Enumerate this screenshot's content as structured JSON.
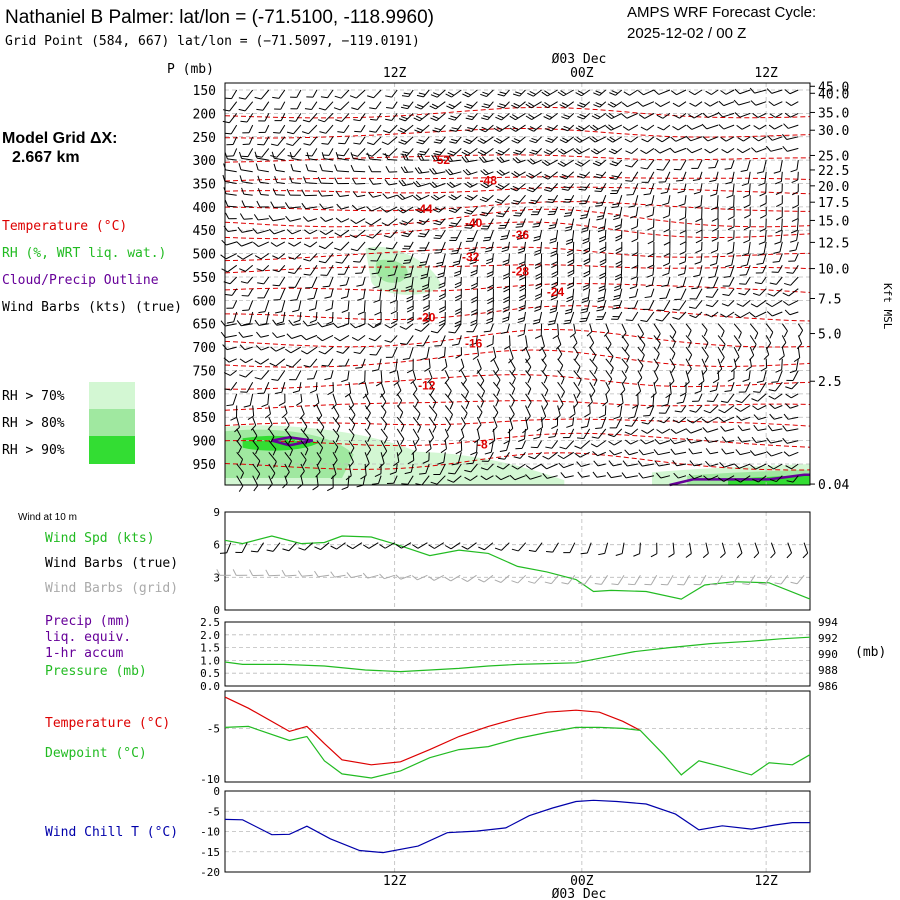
{
  "header": {
    "title": "Nathaniel B Palmer:  lat/lon = (-71.5100, -118.9960)",
    "subtitle": "Grid Point (584, 667) lat/lon = (−71.5097, −119.0191)",
    "cycle_line1": "AMPS WRF Forecast Cycle:",
    "cycle_line2": "2025-12-02 / 00  Z"
  },
  "time_axis": {
    "labels": [
      "12Z",
      "00Z",
      "12Z"
    ],
    "date_label": "Ø03 Dec",
    "date_label_bottom": "Ø03 Dec",
    "label_times": [
      0.29,
      0.61,
      0.925
    ]
  },
  "sidebar": {
    "model_grid_label": "Model Grid ΔX:",
    "model_grid_value": "2.667 km",
    "legend_temperature": "Temperature (°C)",
    "legend_rh": "RH (%, WRT liq. wat.)",
    "legend_cloud": "Cloud/Precip Outline",
    "legend_wind": "Wind Barbs (kts) (true)",
    "rh_levels": [
      {
        "label": "RH > 70%",
        "color": "#d3f7d3"
      },
      {
        "label": "RH > 80%",
        "color": "#a0e8a0"
      },
      {
        "label": "RH > 90%",
        "color": "#33dd33"
      }
    ]
  },
  "colors": {
    "temperature": "#dd0000",
    "rh": "#22bb22",
    "cloud": "#660099",
    "wind": "#000000",
    "wind_grid": "#aaaaaa",
    "windchill": "#0000aa"
  },
  "chart_data": [
    {
      "type": "heatmap",
      "name": "vertical-cross-section",
      "ylabel": "P (mb)",
      "y2label": "Kft MSL",
      "pressure_levels": [
        150,
        200,
        250,
        300,
        350,
        400,
        450,
        500,
        550,
        600,
        650,
        700,
        750,
        800,
        850,
        900,
        950
      ],
      "height_ticks": [
        "45.0",
        "40.0",
        "35.0",
        "30.0",
        "25.0",
        "22.5",
        "20.0",
        "17.5",
        "15.0",
        "12.5",
        "10.0",
        "7.5",
        "5.0",
        "2.5",
        "0.04"
      ],
      "height_tick_pressures": [
        142,
        157,
        198,
        236,
        290,
        321,
        355,
        390,
        429,
        476,
        532,
        596,
        671,
        773,
        993
      ],
      "ylim": [
        135,
        995
      ],
      "temperature_contour_labels": [
        {
          "value": "-52",
          "t": 0.37,
          "p": 300
        },
        {
          "value": "-48",
          "t": 0.45,
          "p": 344
        },
        {
          "value": "-44",
          "t": 0.34,
          "p": 405
        },
        {
          "value": "-40",
          "t": 0.425,
          "p": 435
        },
        {
          "value": "-36",
          "t": 0.505,
          "p": 460
        },
        {
          "value": "-32",
          "t": 0.42,
          "p": 507
        },
        {
          "value": "-28",
          "t": 0.505,
          "p": 538
        },
        {
          "value": "-24",
          "t": 0.565,
          "p": 582
        },
        {
          "value": "-20",
          "t": 0.345,
          "p": 637
        },
        {
          "value": "-16",
          "t": 0.425,
          "p": 692
        },
        {
          "value": "-12",
          "t": 0.345,
          "p": 782
        },
        {
          "value": "-8",
          "t": 0.44,
          "p": 908
        }
      ]
    },
    {
      "type": "line",
      "name": "wind-10m",
      "panel_label": "Wind at 10 m",
      "legend": [
        "Wind Spd (kts)",
        "Wind Barbs (true)",
        "Wind Barbs (grid)"
      ],
      "yticks": [
        "0",
        "3",
        "6",
        "9"
      ],
      "ylim": [
        0,
        9
      ],
      "x": [
        0.0,
        0.03,
        0.08,
        0.13,
        0.17,
        0.2,
        0.25,
        0.3,
        0.35,
        0.4,
        0.45,
        0.5,
        0.55,
        0.6,
        0.63,
        0.66,
        0.72,
        0.78,
        0.82,
        0.87,
        0.93,
        1.0
      ],
      "series": [
        {
          "name": "Wind Spd (kts)",
          "values": [
            6.4,
            6.1,
            6.8,
            6.1,
            6.2,
            6.8,
            6.7,
            5.9,
            5.0,
            5.5,
            5.2,
            4.0,
            3.5,
            2.8,
            1.7,
            1.8,
            1.7,
            1.0,
            2.3,
            2.6,
            2.5,
            1.0
          ]
        }
      ]
    },
    {
      "type": "line",
      "name": "precip-pressure",
      "legend": [
        "Precip (mm)",
        "liq. equiv.",
        "1-hr accum",
        "Pressure (mb)"
      ],
      "yticks": [
        "0.0",
        "0.5",
        "1.0",
        "1.5",
        "2.0",
        "2.5"
      ],
      "y2ticks": [
        "986",
        "988",
        "990",
        "992",
        "994"
      ],
      "y2label": "(mb)",
      "ylim": [
        0,
        2.5
      ],
      "y2lim": [
        986,
        994
      ],
      "x": [
        0.0,
        0.03,
        0.1,
        0.17,
        0.24,
        0.3,
        0.35,
        0.4,
        0.45,
        0.5,
        0.55,
        0.6,
        0.65,
        0.7,
        0.76,
        0.83,
        0.9,
        0.95,
        1.0
      ],
      "series": [
        {
          "name": "Pressure (mb)",
          "values": [
            989.0,
            988.7,
            988.7,
            988.5,
            988.0,
            987.8,
            988.0,
            988.2,
            988.5,
            988.7,
            988.8,
            988.9,
            989.6,
            990.3,
            990.8,
            991.3,
            991.6,
            991.9,
            992.1
          ]
        }
      ]
    },
    {
      "type": "line",
      "name": "temperature-dewpoint",
      "legend": [
        "Temperature (°C)",
        "Dewpoint (°C)"
      ],
      "yticks": [
        "-5",
        "-10"
      ],
      "ylim": [
        -10.3,
        -1.3
      ],
      "x": [
        0.0,
        0.04,
        0.11,
        0.14,
        0.17,
        0.2,
        0.25,
        0.3,
        0.35,
        0.4,
        0.45,
        0.5,
        0.55,
        0.6,
        0.64,
        0.68,
        0.71,
        0.75,
        0.78,
        0.81,
        0.85,
        0.9,
        0.93,
        0.97,
        1.0
      ],
      "series": [
        {
          "name": "Temperature (°C)",
          "values": [
            -1.9,
            -3.0,
            -5.3,
            -4.8,
            -6.5,
            -8.1,
            -8.6,
            -8.3,
            -7.1,
            -5.8,
            -4.8,
            -4.0,
            -3.4,
            -3.2,
            -3.4,
            -4.3,
            -5.2,
            null,
            null,
            null,
            null,
            null,
            null,
            null,
            null
          ]
        },
        {
          "name": "Dewpoint (°C)",
          "values": [
            -4.9,
            -4.8,
            -6.2,
            -5.8,
            -8.2,
            -9.5,
            -9.9,
            -9.2,
            -7.9,
            -7.1,
            -6.8,
            -6.0,
            -5.4,
            -4.9,
            -4.9,
            -5.0,
            -5.2,
            -7.6,
            -9.6,
            -8.2,
            -8.8,
            -9.6,
            -8.4,
            -8.6,
            -7.6
          ]
        }
      ]
    },
    {
      "type": "line",
      "name": "wind-chill",
      "legend": [
        "Wind Chill T (°C)"
      ],
      "yticks": [
        "0",
        "-5",
        "-10",
        "-15",
        "-20"
      ],
      "ylim": [
        -20,
        0
      ],
      "x": [
        0.0,
        0.03,
        0.08,
        0.11,
        0.14,
        0.18,
        0.23,
        0.27,
        0.33,
        0.38,
        0.43,
        0.48,
        0.52,
        0.56,
        0.6,
        0.63,
        0.67,
        0.72,
        0.77,
        0.81,
        0.85,
        0.9,
        0.94,
        0.97,
        1.0
      ],
      "series": [
        {
          "name": "Wind Chill T (°C)",
          "values": [
            -7.0,
            -7.1,
            -10.8,
            -10.7,
            -8.7,
            -11.8,
            -14.7,
            -15.2,
            -13.6,
            -10.3,
            -9.9,
            -9.1,
            -6.1,
            -4.2,
            -2.6,
            -2.3,
            -2.6,
            -3.2,
            -5.7,
            -9.6,
            -8.6,
            -9.4,
            -8.4,
            -7.8,
            -7.8
          ]
        }
      ]
    }
  ]
}
